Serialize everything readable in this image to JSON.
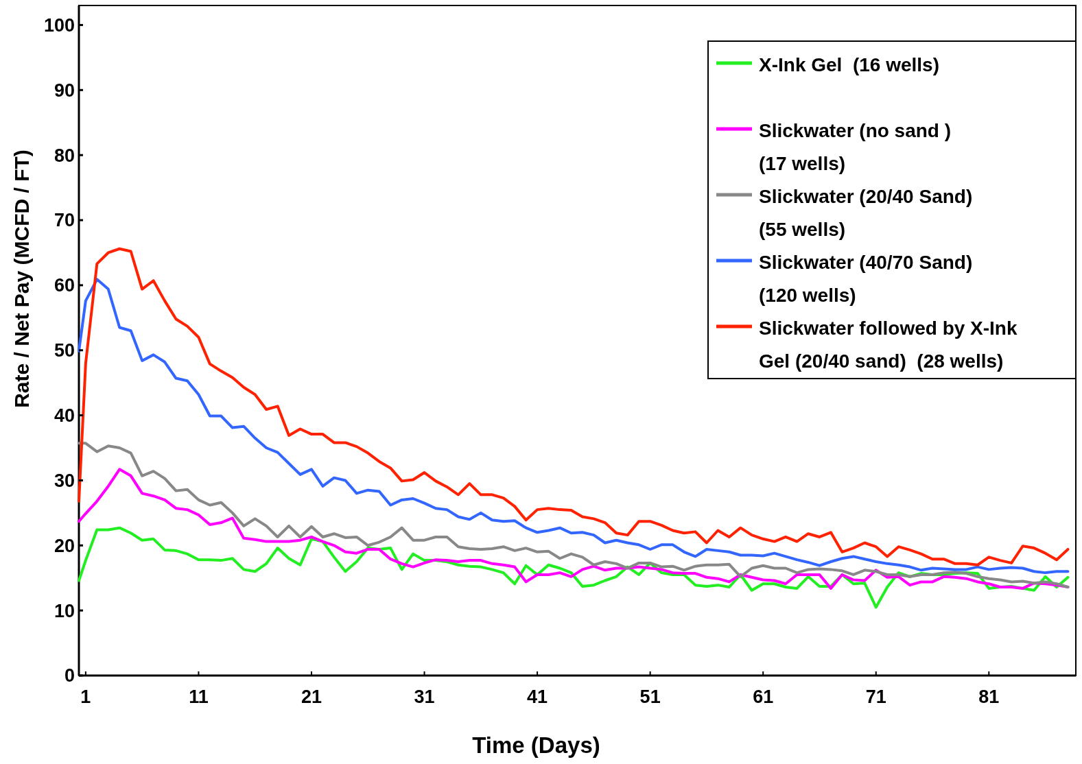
{
  "chart_data": {
    "type": "line",
    "xlabel": "Time (Days)",
    "ylabel": "Rate / Net Pay (MCFD / FT)",
    "x": [
      0.4,
      1,
      2,
      3,
      4,
      5,
      6,
      7,
      8,
      9,
      10,
      11,
      12,
      13,
      14,
      15,
      16,
      17,
      18,
      19,
      20,
      21,
      22,
      23,
      24,
      25,
      26,
      27,
      28,
      29,
      30,
      31,
      32,
      33,
      34,
      35,
      36,
      37,
      38,
      39,
      40,
      41,
      42,
      43,
      44,
      45,
      46,
      47,
      48,
      49,
      50,
      51,
      52,
      53,
      54,
      55,
      56,
      57,
      58,
      59,
      60,
      61,
      62,
      63,
      64,
      65,
      66,
      67,
      68,
      69,
      70,
      71,
      72,
      73,
      74,
      75,
      76,
      77,
      78,
      79,
      80,
      81,
      82,
      83,
      84,
      85,
      86,
      87,
      88
    ],
    "xlim": [
      0.4,
      88.7
    ],
    "xticks": [
      1,
      11,
      21,
      31,
      41,
      51,
      61,
      71,
      81
    ],
    "ylim": [
      0,
      103
    ],
    "yticks": [
      0,
      10,
      20,
      30,
      40,
      50,
      60,
      70,
      80,
      90,
      100
    ],
    "grid": false,
    "legend": "top right",
    "marker": "none",
    "line_style": "solid",
    "series": [
      {
        "name": "X-Ink Gel  (16 wells)",
        "color": "#22ee22",
        "values": [
          14.6,
          17.7,
          22.4,
          22.4,
          22.7,
          21.9,
          20.8,
          21,
          19.3,
          19.2,
          18.7,
          17.8,
          17.8,
          17.7,
          18,
          16.3,
          16,
          17.2,
          19.6,
          18,
          17,
          21,
          20.6,
          18.2,
          16,
          17.5,
          19.6,
          19.4,
          19.6,
          16.3,
          18.7,
          17.7,
          17.7,
          17.5,
          17,
          16.8,
          16.7,
          16.3,
          15.8,
          14.1,
          16.9,
          15.5,
          17,
          16.5,
          15.8,
          13.7,
          13.9,
          14.6,
          15.2,
          16.7,
          15.5,
          17.3,
          15.8,
          15.5,
          15.5,
          13.9,
          13.7,
          13.9,
          13.6,
          15.5,
          13.1,
          14.1,
          14.1,
          13.6,
          13.4,
          15.2,
          13.7,
          13.7,
          15.5,
          14.1,
          14.2,
          10.5,
          13.6,
          15.8,
          15.2,
          15.7,
          15.5,
          15.5,
          15.7,
          15.8,
          15.7,
          13.4,
          13.6,
          13.7,
          13.4,
          13.1,
          15.2,
          13.6,
          15.1
        ]
      },
      {
        "name": "Slickwater (no sand )\n(17 wells)",
        "color": "#ff00ff",
        "values": [
          23.7,
          24.9,
          26.8,
          29.1,
          31.7,
          30.7,
          28,
          27.6,
          27,
          25.7,
          25.5,
          24.7,
          23.2,
          23.5,
          24.2,
          21.1,
          20.9,
          20.6,
          20.6,
          20.6,
          20.8,
          21.3,
          20.6,
          20,
          19,
          18.8,
          19.4,
          19.4,
          17.9,
          17.2,
          16.7,
          17.3,
          17.8,
          17.7,
          17.5,
          17.7,
          17.7,
          17.2,
          17,
          16.7,
          14.4,
          15.5,
          15.5,
          15.8,
          15.2,
          16.3,
          16.8,
          16.2,
          16.5,
          16.5,
          16.7,
          16.5,
          16.3,
          15.8,
          15.7,
          15.7,
          15.1,
          14.9,
          14.4,
          15.5,
          15.1,
          14.7,
          14.6,
          14.1,
          15.5,
          15.5,
          15.5,
          13.4,
          15.5,
          14.7,
          14.6,
          16.2,
          15.1,
          15.2,
          13.9,
          14.4,
          14.4,
          15.2,
          15.1,
          14.9,
          14.4,
          14.1,
          13.6,
          13.6,
          13.4,
          14.2,
          14.1,
          13.9,
          13.6
        ]
      },
      {
        "name": "Slickwater (20/40 Sand)\n(55 wells)",
        "color": "#888888",
        "values": [
          35.7,
          35.7,
          34.4,
          35.3,
          35,
          34.2,
          30.7,
          31.4,
          30.3,
          28.4,
          28.6,
          27,
          26.2,
          26.6,
          25,
          23,
          24.1,
          23,
          21.3,
          23,
          21.3,
          22.9,
          21.3,
          21.8,
          21.2,
          21.3,
          20,
          20.5,
          21.3,
          22.7,
          20.8,
          20.8,
          21.3,
          21.3,
          19.8,
          19.5,
          19.4,
          19.5,
          19.8,
          19.2,
          19.6,
          19,
          19.1,
          18,
          18.7,
          18.2,
          17,
          17.5,
          17.2,
          16.5,
          17.3,
          17.3,
          16.7,
          16.8,
          16.2,
          16.8,
          17,
          17,
          17.1,
          15.2,
          16.5,
          16.9,
          16.5,
          16.5,
          15.8,
          16.3,
          16.4,
          16.3,
          16.1,
          15.5,
          16.2,
          16,
          15.5,
          15.5,
          15.2,
          15.5,
          15.5,
          15.8,
          15.9,
          15.7,
          15.2,
          14.9,
          14.7,
          14.4,
          14.5,
          14.2,
          14.4,
          14.1,
          13.6
        ]
      },
      {
        "name": "Slickwater (40/70 Sand)\n(120 wells)",
        "color": "#3366ff",
        "values": [
          49.9,
          57.6,
          60.9,
          59.4,
          53.5,
          53,
          48.4,
          49.3,
          48.2,
          45.7,
          45.3,
          43.2,
          39.9,
          39.9,
          38.1,
          38.3,
          36.5,
          35,
          34.3,
          32.6,
          30.9,
          31.7,
          29.1,
          30.4,
          30,
          28,
          28.5,
          28.3,
          26.2,
          27,
          27.2,
          26.5,
          25.7,
          25.5,
          24.4,
          24,
          25,
          23.9,
          23.7,
          23.8,
          22.7,
          22,
          22.3,
          22.7,
          21.9,
          22,
          21.6,
          20.4,
          20.8,
          20.4,
          20.1,
          19.4,
          20.1,
          20.1,
          19,
          18.3,
          19.4,
          19.2,
          19,
          18.5,
          18.5,
          18.4,
          18.8,
          18.3,
          17.8,
          17.4,
          16.9,
          17.5,
          18,
          18.3,
          17.9,
          17.5,
          17.2,
          17,
          16.7,
          16.2,
          16.5,
          16.4,
          16.3,
          16.3,
          16.7,
          16.3,
          16.5,
          16.6,
          16.5,
          16,
          15.8,
          16,
          16
        ]
      },
      {
        "name": "Slickwater followed by X-Ink\nGel (20/40 sand)  (28 wells)",
        "color": "#ff2200",
        "values": [
          26.8,
          48,
          63.3,
          65,
          65.6,
          65.2,
          59.4,
          60.7,
          57.6,
          54.8,
          53.7,
          52,
          47.9,
          46.8,
          45.8,
          44.3,
          43.2,
          40.9,
          41.4,
          36.9,
          37.9,
          37.1,
          37.1,
          35.8,
          35.8,
          35.2,
          34.2,
          32.9,
          31.9,
          29.9,
          30.1,
          31.2,
          29.9,
          29,
          27.8,
          29.5,
          27.8,
          27.8,
          27.3,
          26,
          23.9,
          25.5,
          25.7,
          25.5,
          25.4,
          24.4,
          24.1,
          23.5,
          21.9,
          21.6,
          23.7,
          23.7,
          23.1,
          22.3,
          21.9,
          22.1,
          20.4,
          22.3,
          21.3,
          22.7,
          21.6,
          21,
          20.6,
          21.3,
          20.6,
          21.8,
          21.3,
          22,
          19,
          19.6,
          20.4,
          19.8,
          18.3,
          19.8,
          19.3,
          18.7,
          17.9,
          17.9,
          17.2,
          17.2,
          17,
          18.2,
          17.7,
          17.3,
          19.9,
          19.6,
          18.8,
          17.8,
          19.4
        ]
      }
    ]
  }
}
